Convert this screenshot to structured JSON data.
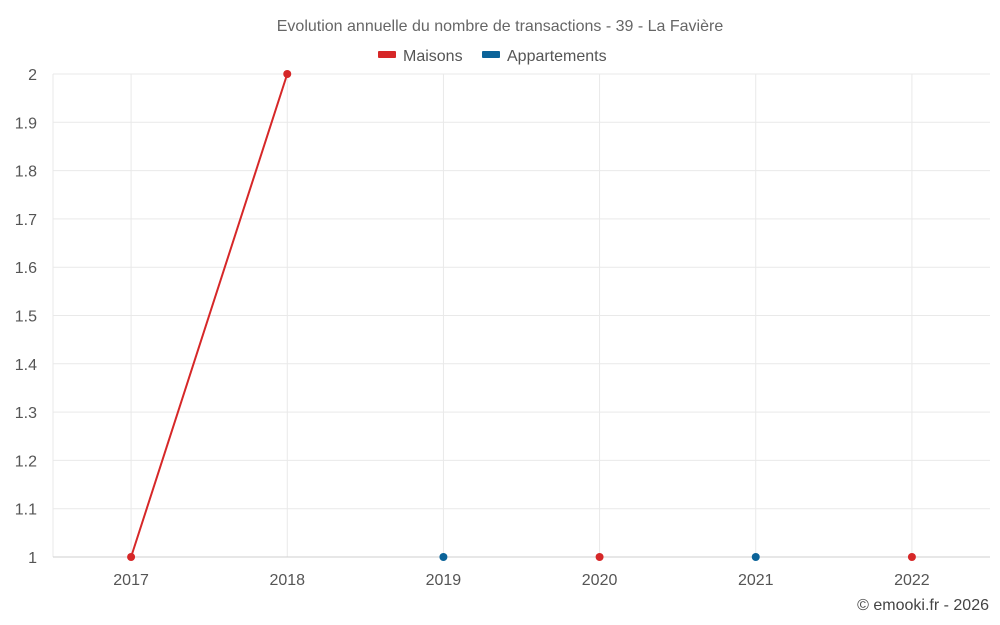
{
  "chart_data": {
    "type": "line",
    "title": "Evolution annuelle du nombre de transactions - 39 - La Favière",
    "categories": [
      "2017",
      "2018",
      "2019",
      "2020",
      "2021",
      "2022"
    ],
    "ylim": [
      1,
      2
    ],
    "yticks": [
      "1",
      "1.1",
      "1.2",
      "1.3",
      "1.4",
      "1.5",
      "1.6",
      "1.7",
      "1.8",
      "1.9",
      "2"
    ],
    "grid": true,
    "legend_position": "top-center",
    "series": [
      {
        "name": "Maisons",
        "color": "#d62728",
        "values": [
          1,
          2,
          null,
          1,
          null,
          1
        ]
      },
      {
        "name": "Appartements",
        "color": "#0b6399",
        "values": [
          null,
          null,
          1,
          null,
          1,
          null
        ]
      }
    ]
  },
  "credit": "© emooki.fr - 2026"
}
